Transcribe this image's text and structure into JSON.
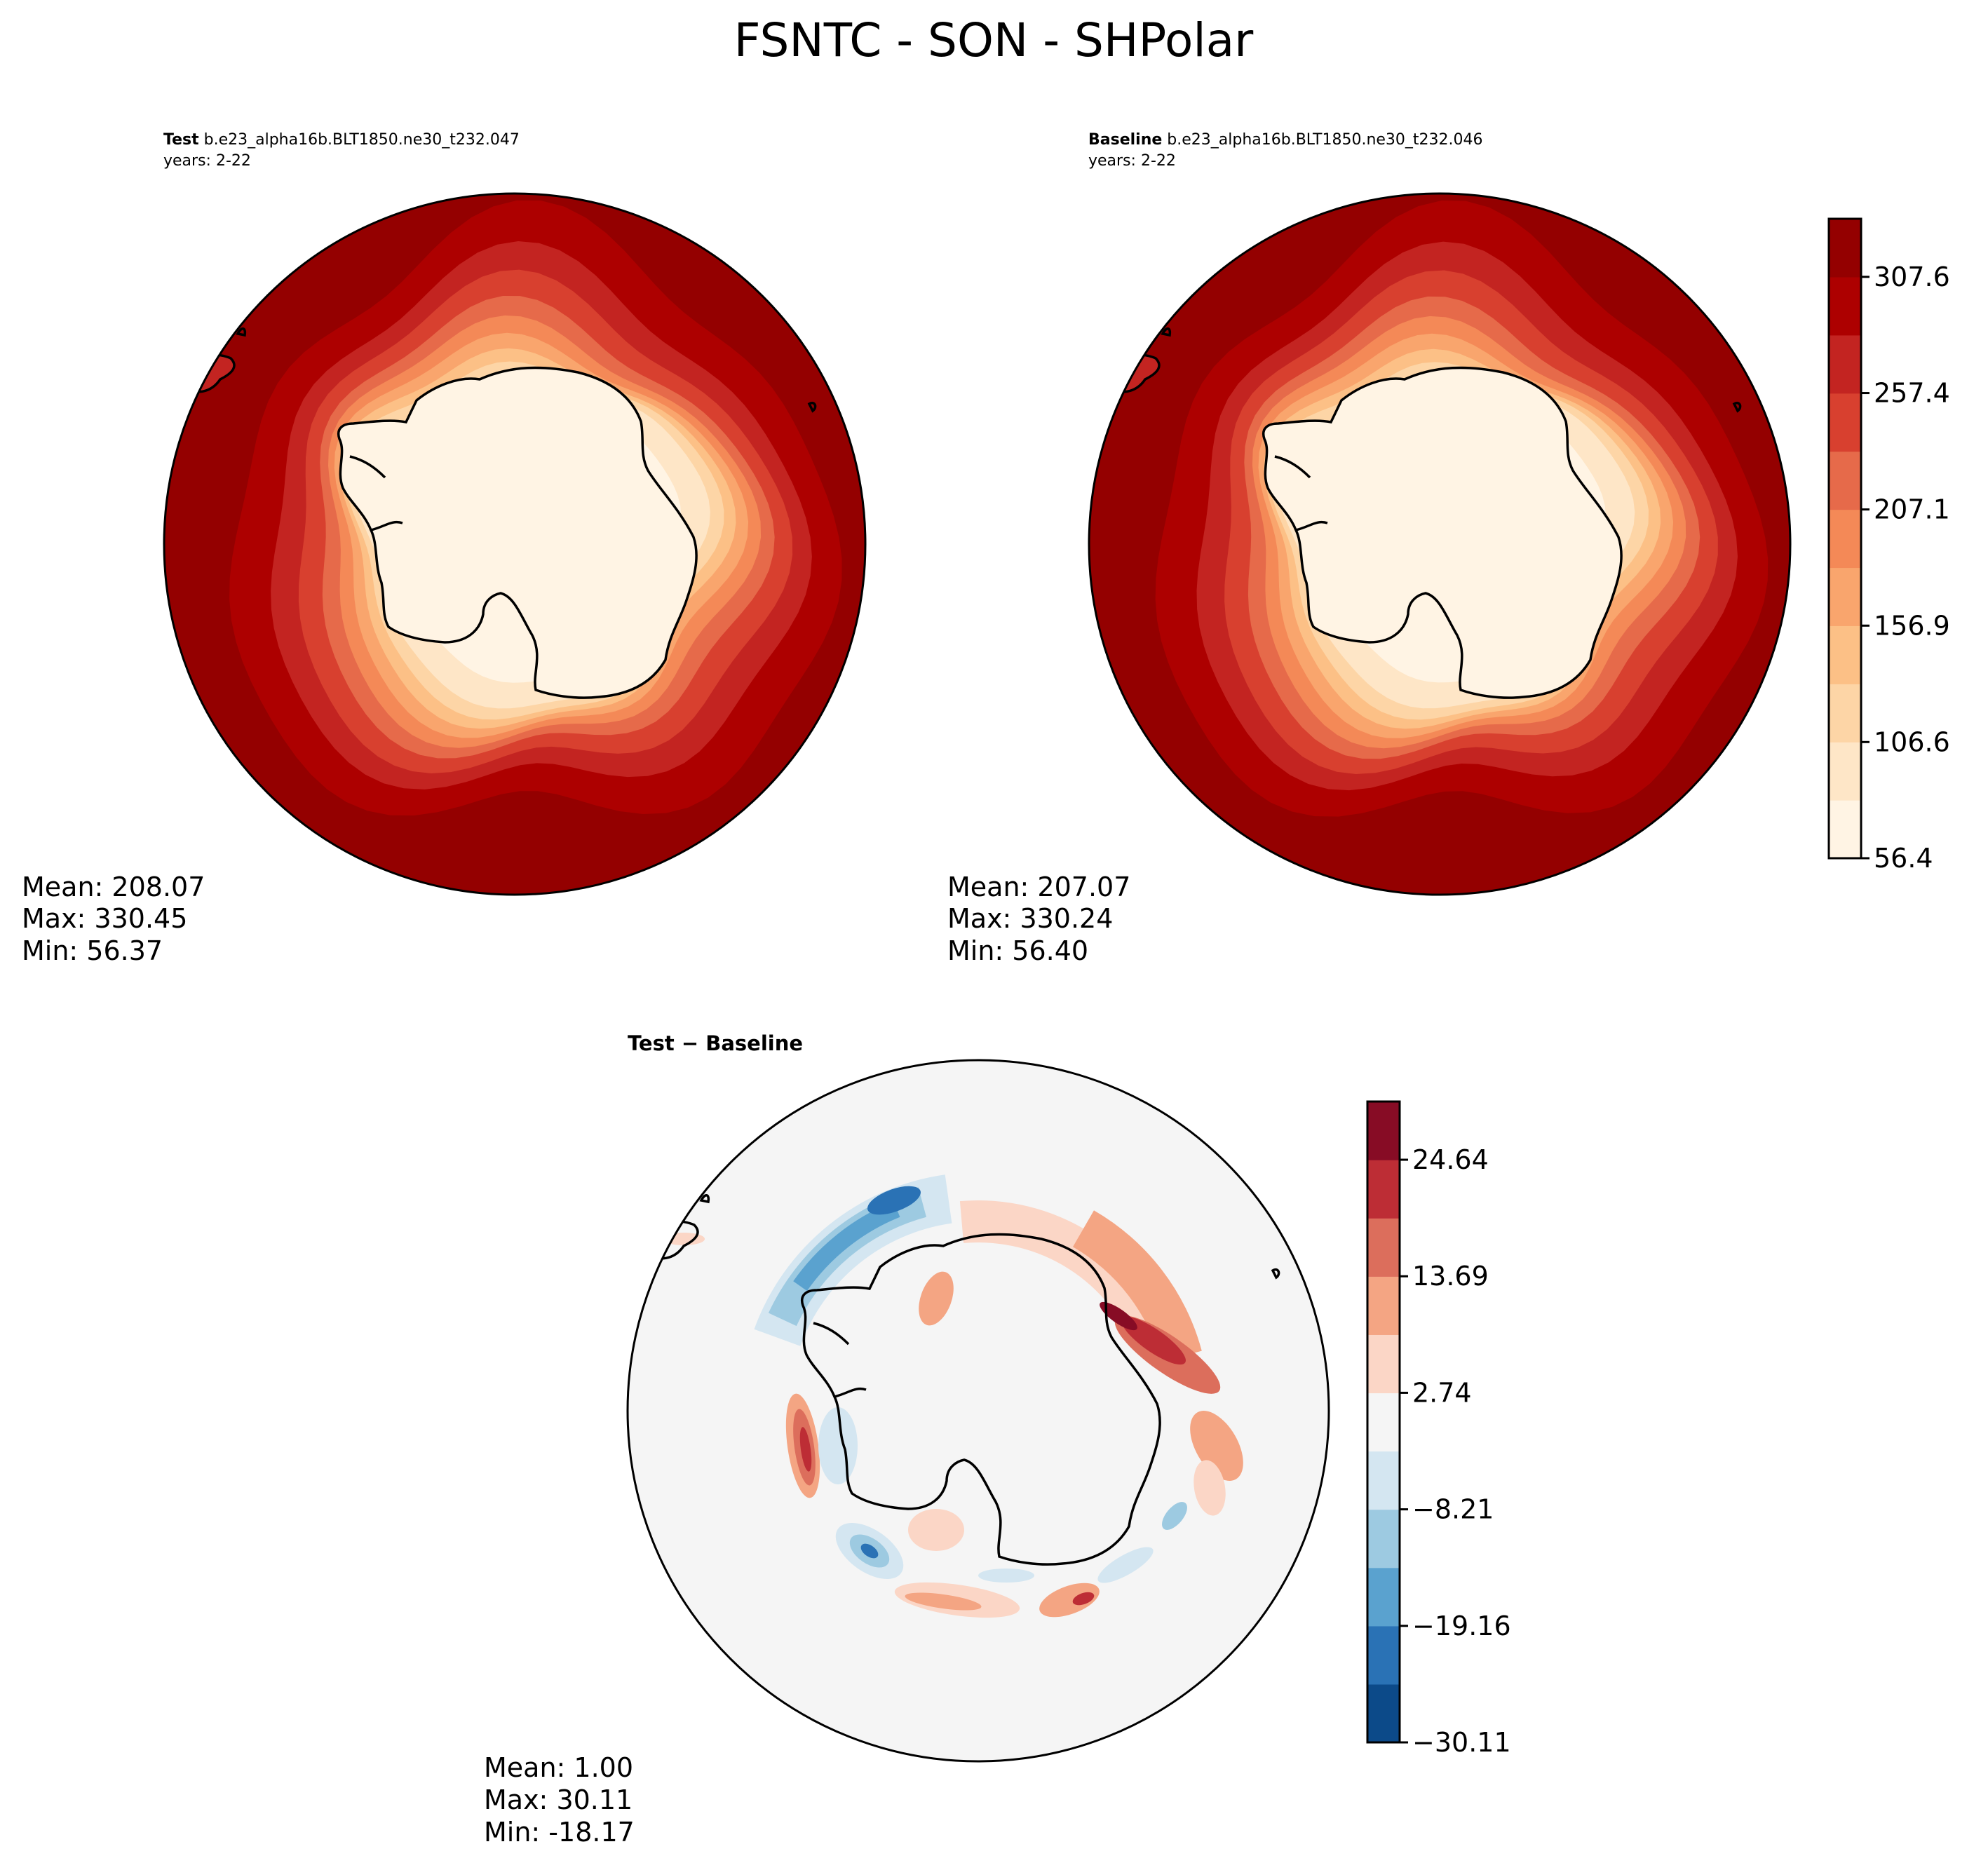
{
  "figure": {
    "title": "FSNTC - SON - SHPolar"
  },
  "chart_data": [
    {
      "type": "heatmap",
      "projection": "south-polar-stereographic",
      "title_label": "Test",
      "title_value": " b.e23_alpha16b.BLT1850.ne30_t232.047",
      "subtitle": "years: 2-22",
      "stats": {
        "mean": "Mean: 208.07",
        "max": "Max: 330.45",
        "min": "Min: 56.37"
      },
      "field_description": "FSNTC increases from ~56 over the Antarctic interior to ~330 at the outer (lower latitude) edge",
      "colorbar_ref": "shared"
    },
    {
      "type": "heatmap",
      "projection": "south-polar-stereographic",
      "title_label": "Baseline",
      "title_value": " b.e23_alpha16b.BLT1850.ne30_t232.046",
      "subtitle": "years: 2-22",
      "stats": {
        "mean": "Mean: 207.07",
        "max": "Max: 330.24",
        "min": "Min: 56.40"
      },
      "colorbar": {
        "ticks": [
          "307.6",
          "257.4",
          "207.1",
          "156.9",
          "106.6",
          "56.4"
        ],
        "range": [
          56.4,
          332.7
        ],
        "levels": 11,
        "colors": [
          "#fff4e4",
          "#fee6c7",
          "#fdd5a6",
          "#fcc086",
          "#f9a56d",
          "#f48957",
          "#e66a4a",
          "#d8402f",
          "#c32421",
          "#ad0000",
          "#940000"
        ]
      }
    },
    {
      "type": "heatmap",
      "projection": "south-polar-stereographic",
      "title": "Test − Baseline",
      "stats": {
        "mean": "Mean:  1.00",
        "max": "Max: 30.11",
        "min": "Min: -18.17"
      },
      "colorbar": {
        "ticks": [
          "24.64",
          "13.69",
          "2.74",
          "−8.21",
          "−19.16",
          "−30.11"
        ],
        "range": [
          -30.11,
          30.11
        ],
        "levels": 11,
        "colors": [
          "#0c4a89",
          "#2a72b5",
          "#5aa2cf",
          "#9dcae1",
          "#d4e6f1",
          "#f5f5f5",
          "#fbd6c6",
          "#f4a583",
          "#dc6e5c",
          "#bd2d35",
          "#870c25"
        ]
      }
    }
  ]
}
